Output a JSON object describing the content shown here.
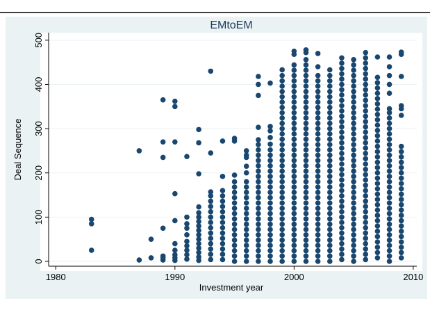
{
  "chart_data": {
    "type": "scatter",
    "title": "EMtoEM",
    "x_label": "Investment year",
    "y_label": "Deal Sequence",
    "color": "#1a476f",
    "xlim": [
      1979.4,
      2010.3
    ],
    "ylim": [
      -11,
      517
    ],
    "xticks": [
      1980,
      1990,
      2000,
      2010
    ],
    "yticks": [
      0,
      100,
      200,
      300,
      400,
      500
    ],
    "grid": true,
    "columns": [
      {
        "x": 1983,
        "y": [
          95,
          85,
          25
        ]
      },
      {
        "x": 1987,
        "y": [
          250,
          3
        ]
      },
      {
        "x": 1988,
        "y": [
          50,
          8
        ]
      },
      {
        "x": 1989,
        "y": [
          365,
          270,
          235,
          75,
          12,
          8,
          3
        ]
      },
      {
        "x": 1990,
        "y": [
          362,
          350,
          270,
          153,
          92,
          40,
          25,
          15,
          8,
          2
        ]
      },
      {
        "x": 1991,
        "y": [
          237,
          100,
          85,
          75,
          60,
          45,
          35,
          25,
          15,
          5
        ]
      },
      {
        "x": 1992,
        "y": [
          298,
          268,
          198,
          123,
          110,
          100,
          90,
          80,
          70,
          60,
          50,
          40,
          30,
          20,
          10,
          2
        ]
      },
      {
        "x": 1993,
        "y": [
          430,
          245,
          157,
          148,
          136,
          124,
          112,
          100,
          88,
          76,
          64,
          52,
          40,
          28,
          16,
          4
        ]
      },
      {
        "x": 1994,
        "y": [
          272,
          192,
          160,
          148,
          136,
          124,
          112,
          100,
          88,
          76,
          64,
          52,
          40,
          28,
          16,
          4
        ]
      },
      {
        "x": 1995,
        "y": [
          278,
          272,
          195,
          180,
          168,
          156,
          144,
          132,
          120,
          108,
          96,
          84,
          72,
          60,
          48,
          36,
          24,
          12,
          0
        ]
      },
      {
        "x": 1996,
        "y": [
          250,
          240,
          235,
          215,
          200,
          180,
          168,
          156,
          144,
          132,
          120,
          108,
          96,
          84,
          72,
          60,
          48,
          36,
          24,
          12,
          0
        ]
      },
      {
        "x": 1997,
        "y": [
          418,
          400,
          375,
          303,
          275,
          264,
          252,
          240,
          228,
          216,
          204,
          192,
          180,
          168,
          156,
          144,
          132,
          120,
          108,
          96,
          84,
          72,
          60,
          48,
          36,
          24,
          12,
          0
        ]
      },
      {
        "x": 1998,
        "y": [
          403,
          305,
          295,
          280,
          265,
          252,
          240,
          228,
          216,
          204,
          192,
          180,
          168,
          156,
          144,
          132,
          120,
          108,
          96,
          84,
          72,
          60,
          48,
          36,
          24,
          12,
          0
        ]
      },
      {
        "x": 1999,
        "y": [
          433,
          420,
          408,
          396,
          384,
          372,
          360,
          348,
          336,
          324,
          312,
          300,
          288,
          276,
          264,
          252,
          240,
          228,
          216,
          204,
          192,
          180,
          168,
          156,
          144,
          132,
          120,
          108,
          96,
          84,
          72,
          60,
          48,
          36,
          24,
          12,
          0
        ]
      },
      {
        "x": 2000,
        "y": [
          475,
          468,
          444,
          432,
          420,
          408,
          396,
          384,
          372,
          360,
          348,
          336,
          324,
          312,
          300,
          288,
          276,
          264,
          252,
          240,
          228,
          216,
          204,
          192,
          180,
          168,
          156,
          144,
          132,
          120,
          108,
          96,
          84,
          72,
          60,
          48,
          36,
          24,
          12,
          0
        ]
      },
      {
        "x": 2001,
        "y": [
          478,
          472,
          456,
          444,
          432,
          420,
          408,
          396,
          384,
          372,
          360,
          348,
          336,
          324,
          312,
          300,
          288,
          276,
          264,
          252,
          240,
          228,
          216,
          204,
          192,
          180,
          168,
          156,
          144,
          132,
          120,
          108,
          96,
          84,
          72,
          60,
          48,
          36,
          24,
          12,
          0
        ]
      },
      {
        "x": 2002,
        "y": [
          470,
          440,
          420,
          408,
          396,
          384,
          372,
          360,
          348,
          336,
          324,
          312,
          300,
          288,
          276,
          264,
          252,
          240,
          228,
          216,
          204,
          192,
          180,
          168,
          156,
          144,
          132,
          120,
          108,
          96,
          84,
          72,
          60,
          48,
          36,
          24,
          12,
          0
        ]
      },
      {
        "x": 2003,
        "y": [
          433,
          420,
          408,
          396,
          384,
          372,
          360,
          348,
          336,
          324,
          312,
          300,
          288,
          276,
          264,
          252,
          240,
          228,
          216,
          204,
          192,
          180,
          168,
          156,
          144,
          132,
          120,
          108,
          96,
          84,
          72,
          60,
          48,
          36,
          24,
          12,
          0
        ]
      },
      {
        "x": 2004,
        "y": [
          460,
          448,
          436,
          424,
          412,
          400,
          388,
          376,
          364,
          352,
          340,
          328,
          316,
          304,
          292,
          280,
          268,
          256,
          244,
          232,
          220,
          208,
          196,
          184,
          172,
          160,
          148,
          136,
          124,
          112,
          100,
          88,
          76,
          64,
          52,
          40,
          28,
          16,
          4
        ]
      },
      {
        "x": 2005,
        "y": [
          456,
          444,
          432,
          420,
          408,
          396,
          384,
          372,
          360,
          348,
          336,
          324,
          312,
          300,
          288,
          276,
          264,
          252,
          240,
          228,
          216,
          204,
          192,
          180,
          168,
          156,
          144,
          132,
          120,
          108,
          96,
          84,
          72,
          60,
          48,
          36,
          24,
          12,
          0
        ]
      },
      {
        "x": 2006,
        "y": [
          472,
          460,
          448,
          436,
          424,
          412,
          400,
          388,
          376,
          364,
          352,
          340,
          328,
          316,
          304,
          292,
          280,
          268,
          256,
          244,
          232,
          220,
          208,
          196,
          184,
          172,
          160,
          148,
          136,
          124,
          112,
          100,
          88,
          76,
          64,
          52,
          40,
          28,
          16,
          4
        ]
      },
      {
        "x": 2007,
        "y": [
          462,
          416,
          404,
          392,
          380,
          368,
          356,
          344,
          332,
          320,
          308,
          296,
          284,
          272,
          260,
          248,
          236,
          224,
          212,
          200,
          188,
          176,
          164,
          152,
          140,
          128,
          116,
          104,
          92,
          80,
          68,
          56,
          44,
          32,
          20,
          8
        ]
      },
      {
        "x": 2008,
        "y": [
          462,
          440,
          420,
          400,
          380,
          345,
          336,
          324,
          312,
          300,
          288,
          276,
          264,
          252,
          240,
          228,
          216,
          204,
          192,
          180,
          168,
          156,
          144,
          132,
          120,
          108,
          96,
          84,
          72,
          60,
          48,
          36,
          24,
          12,
          0
        ]
      },
      {
        "x": 2009,
        "y": [
          473,
          468,
          418,
          352,
          345,
          330,
          260,
          248,
          236,
          224,
          212,
          200,
          188,
          176,
          164,
          152,
          140,
          128,
          116,
          104,
          92,
          80,
          68,
          56,
          44,
          32,
          20,
          8
        ]
      }
    ]
  }
}
